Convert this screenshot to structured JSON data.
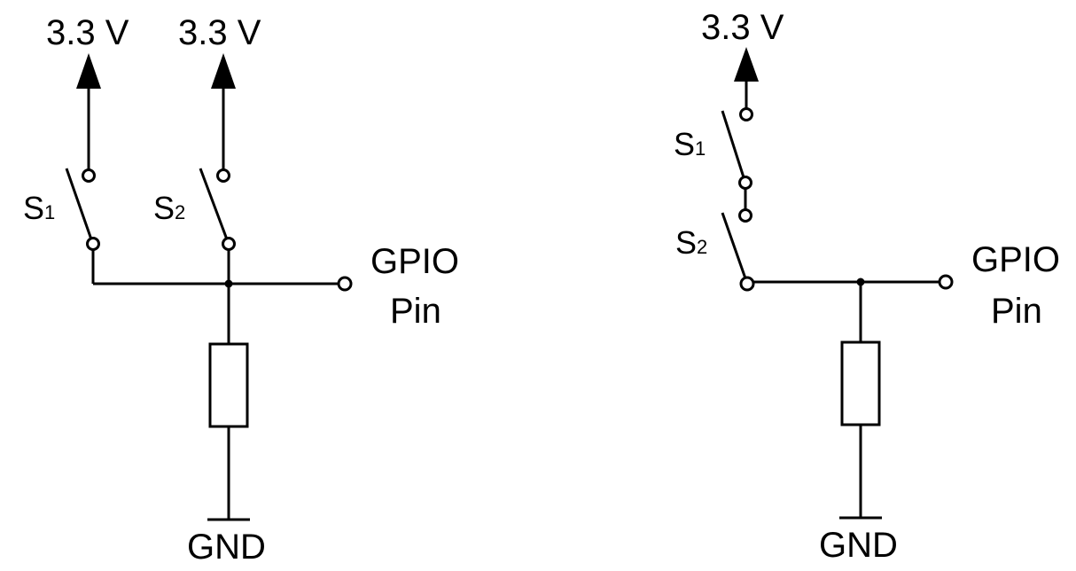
{
  "colors": {
    "ink": "#000000",
    "background": "#ffffff"
  },
  "left_circuit": {
    "supply_1": "3.3 V",
    "supply_2": "3.3 V",
    "switch_1": {
      "letter": "S",
      "index": "1"
    },
    "switch_2": {
      "letter": "S",
      "index": "2"
    },
    "output_line_1": "GPIO",
    "output_line_2": "Pin",
    "ground": "GND"
  },
  "right_circuit": {
    "supply": "3.3 V",
    "switch_1": {
      "letter": "S",
      "index": "1"
    },
    "switch_2": {
      "letter": "S",
      "index": "2"
    },
    "output_line_1": "GPIO",
    "output_line_2": "Pin",
    "ground": "GND"
  }
}
